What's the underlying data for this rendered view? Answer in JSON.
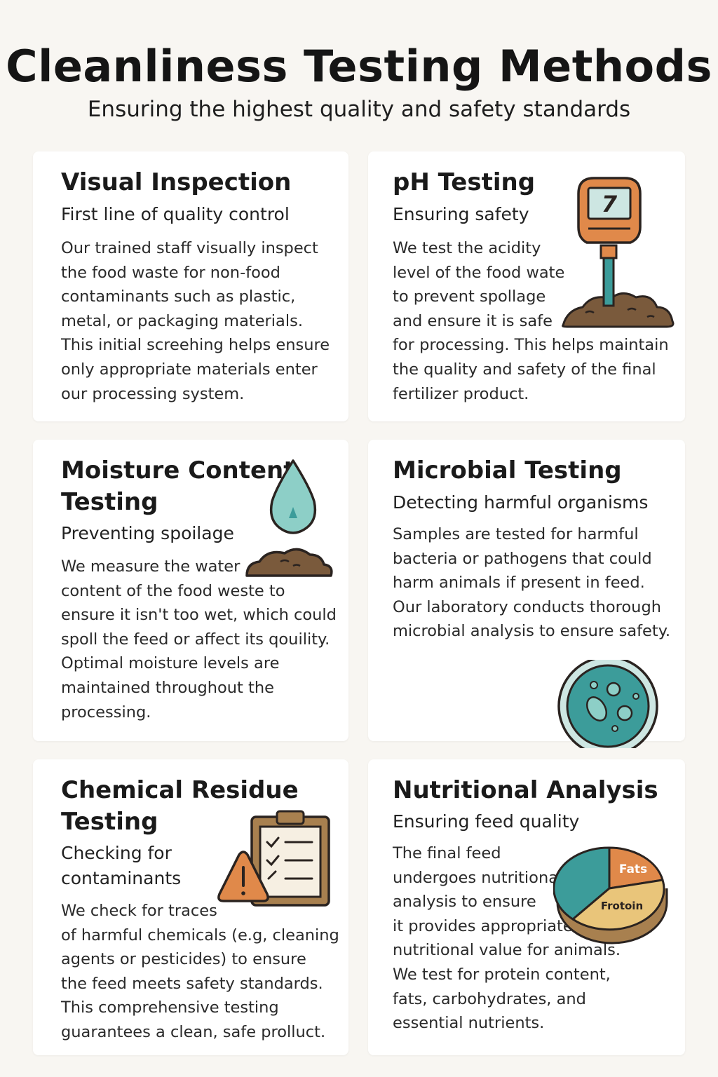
{
  "header": {
    "title": "Cleanliness Testing Methods",
    "subtitle": "Ensuring the highest quality and safety standards"
  },
  "cards": [
    {
      "title_lines": [
        "Visual Inspection"
      ],
      "subtitle_lines": [
        "First line of quality control"
      ],
      "body_lines": [
        "Our trained staff visually inspect",
        "the food waste for non-food",
        "contaminants such as plastic,",
        "metal, or packaging materials.",
        "This initial screehing helps ensure",
        "only appropriate materials enter",
        "our processing system."
      ]
    },
    {
      "title_lines": [
        "pH Testing"
      ],
      "subtitle_lines": [
        "Ensuring safety"
      ],
      "body_lines": [
        "We test the acidity",
        "level of the food wate",
        "to prevent spollage",
        "and ensure it is safe",
        "for processing. This helps maintain",
        "the quality and safety of the final",
        "fertilizer product."
      ],
      "icon": "ph-meter-icon",
      "meter_reading": "7"
    },
    {
      "title_lines": [
        "Moisture Content",
        "Testing"
      ],
      "subtitle_lines": [
        "Preventing spoilage"
      ],
      "body_lines": [
        "We measure the water",
        "content of the food weste to",
        "ensure it isn't too wet, which could",
        "spoll the feed or affect its qouility.",
        "Optimal moisture levels are",
        "maintained throughout the",
        "processing."
      ],
      "icon": "water-drop-icon"
    },
    {
      "title_lines": [
        "Microbial Testing"
      ],
      "subtitle_lines": [
        "Detecting harmful organisms"
      ],
      "body_lines": [
        "Samples are tested for harmful",
        "bacteria or pathogens that could",
        "harm animals if present in feed.",
        "Our laboratory conducts thorough",
        "microbial analysis to ensure safety."
      ],
      "icon": "petri-dish-icon"
    },
    {
      "title_lines": [
        "Chemical Residue",
        "Testing"
      ],
      "subtitle_lines": [
        "Checking for",
        "contaminants"
      ],
      "body_lines": [
        "We check for traces",
        "of harmful chemicals (e.g,  cleaning",
        "agents or pesticides) to ensure",
        "the feed meets safety standards.",
        "This comprehensive testing",
        "guarantees a clean, safe prolluct."
      ],
      "icon": "clipboard-warning-icon"
    },
    {
      "title_lines": [
        "Nutritional Analysis"
      ],
      "subtitle_lines": [
        "Ensuring feed quality"
      ],
      "body_lines": [
        "The final feed",
        "undergoes nutritional",
        "analysis to ensure",
        "it provides appropriate",
        "nutritional value for animals.",
        "We test for protein content,",
        "fats, carbohydrates, and",
        "essential nutrients."
      ],
      "icon": "pie-chart-icon",
      "pie_labels": [
        "Fats",
        "Frotoin"
      ]
    }
  ],
  "colors": {
    "background": "#f8f6f2",
    "card": "#ffffff",
    "orange": "#e0894a",
    "teal": "#3c9c9a",
    "brown": "#7a5a3c",
    "tan": "#e9c57a",
    "outline": "#2a2320"
  }
}
